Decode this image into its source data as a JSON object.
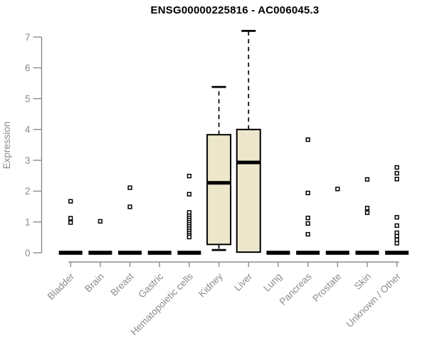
{
  "chart_data": {
    "type": "boxplot",
    "title": "ENSG00000225816 - AC006045.3",
    "ylabel": "Expression",
    "xlabel": "",
    "ylim": [
      0,
      7
    ],
    "yticks": [
      0,
      1,
      2,
      3,
      4,
      5,
      6,
      7
    ],
    "grid": false,
    "legend": "none",
    "colors": {
      "box_fill": "#ECE7CB",
      "box_stroke": "#000000",
      "axis": "#8B8B8B",
      "tick_label": "#8B8B8B",
      "title": "#000000",
      "outlier_fill": "#FFFFFF"
    },
    "categories": [
      {
        "label": "Bladder",
        "box": null,
        "flat_median": 0,
        "outliers": [
          1.67,
          1.12,
          0.98
        ]
      },
      {
        "label": "Brain",
        "box": null,
        "flat_median": 0,
        "outliers": [
          1.02
        ]
      },
      {
        "label": "Breast",
        "box": null,
        "flat_median": 0,
        "outliers": [
          2.11,
          1.49
        ]
      },
      {
        "label": "Gastric",
        "box": null,
        "flat_median": 0,
        "outliers": []
      },
      {
        "label": "Hematopoietic cells",
        "box": null,
        "flat_median": 0,
        "outliers": [
          2.49,
          1.9,
          1.31,
          1.2,
          1.13,
          1.06,
          0.99,
          0.92,
          0.85,
          0.78,
          0.71,
          0.64,
          0.57,
          0.51
        ]
      },
      {
        "label": "Kidney",
        "box": {
          "q1": 0.27,
          "median": 2.27,
          "q3": 3.83,
          "lo": 0.09,
          "hi": 5.38
        },
        "outliers": []
      },
      {
        "label": "Liver",
        "box": {
          "q1": 0.02,
          "median": 2.93,
          "q3": 4.0,
          "lo": 0.02,
          "hi": 7.2
        },
        "outliers": []
      },
      {
        "label": "Lung",
        "box": null,
        "flat_median": 0,
        "outliers": []
      },
      {
        "label": "Pancreas",
        "box": null,
        "flat_median": 0,
        "outliers": [
          3.67,
          1.94,
          1.13,
          0.95,
          0.6
        ]
      },
      {
        "label": "Prostate",
        "box": null,
        "flat_median": 0,
        "outliers": [
          2.07
        ]
      },
      {
        "label": "Skin",
        "box": null,
        "flat_median": 0,
        "outliers": [
          2.38,
          1.45,
          1.3
        ]
      },
      {
        "label": "Unknown / Other",
        "box": null,
        "flat_median": 0,
        "outliers": [
          2.77,
          2.58,
          2.39,
          1.15,
          0.88,
          0.65,
          0.54,
          0.42,
          0.31
        ]
      }
    ]
  }
}
